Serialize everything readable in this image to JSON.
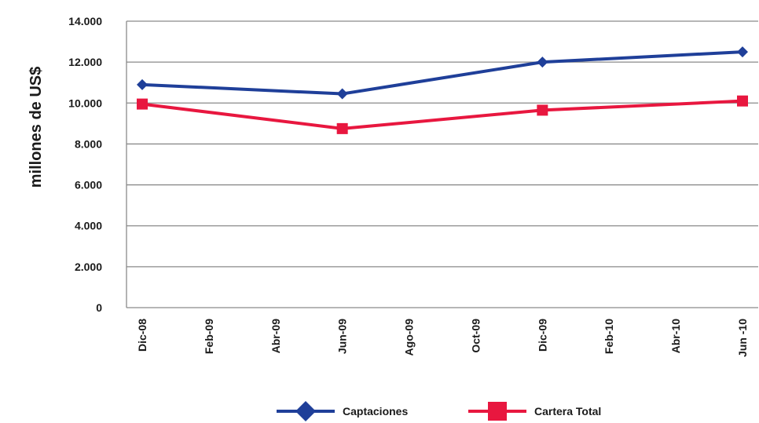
{
  "chart_data": {
    "type": "line",
    "ylabel": "millones de US$",
    "ylim": [
      0,
      14000
    ],
    "yticks": [
      "0",
      "2.000",
      "4.000",
      "6.000",
      "8.000",
      "10.000",
      "12.000",
      "14.000"
    ],
    "ytick_values": [
      0,
      2000,
      4000,
      6000,
      8000,
      10000,
      12000,
      14000
    ],
    "x_labels": [
      "Dic-08",
      "Feb-09",
      "Abr-09",
      "Jun-09",
      "Ago-09",
      "Oct-09",
      "Dic-09",
      "Feb-10",
      "Abr-10",
      "Jun -10"
    ],
    "grid": true,
    "legend_position": "bottom",
    "series": [
      {
        "name": "Captaciones",
        "color": "#1f3f99",
        "marker": "diamond",
        "x": [
          "Dic-08",
          "Jun-09",
          "Dic-09",
          "Jun -10"
        ],
        "values": [
          10900,
          10450,
          12000,
          12500
        ]
      },
      {
        "name": "Cartera Total",
        "color": "#e8173f",
        "marker": "square",
        "x": [
          "Dic-08",
          "Jun-09",
          "Dic-09",
          "Jun -10"
        ],
        "values": [
          9950,
          8750,
          9650,
          10100
        ]
      }
    ]
  }
}
